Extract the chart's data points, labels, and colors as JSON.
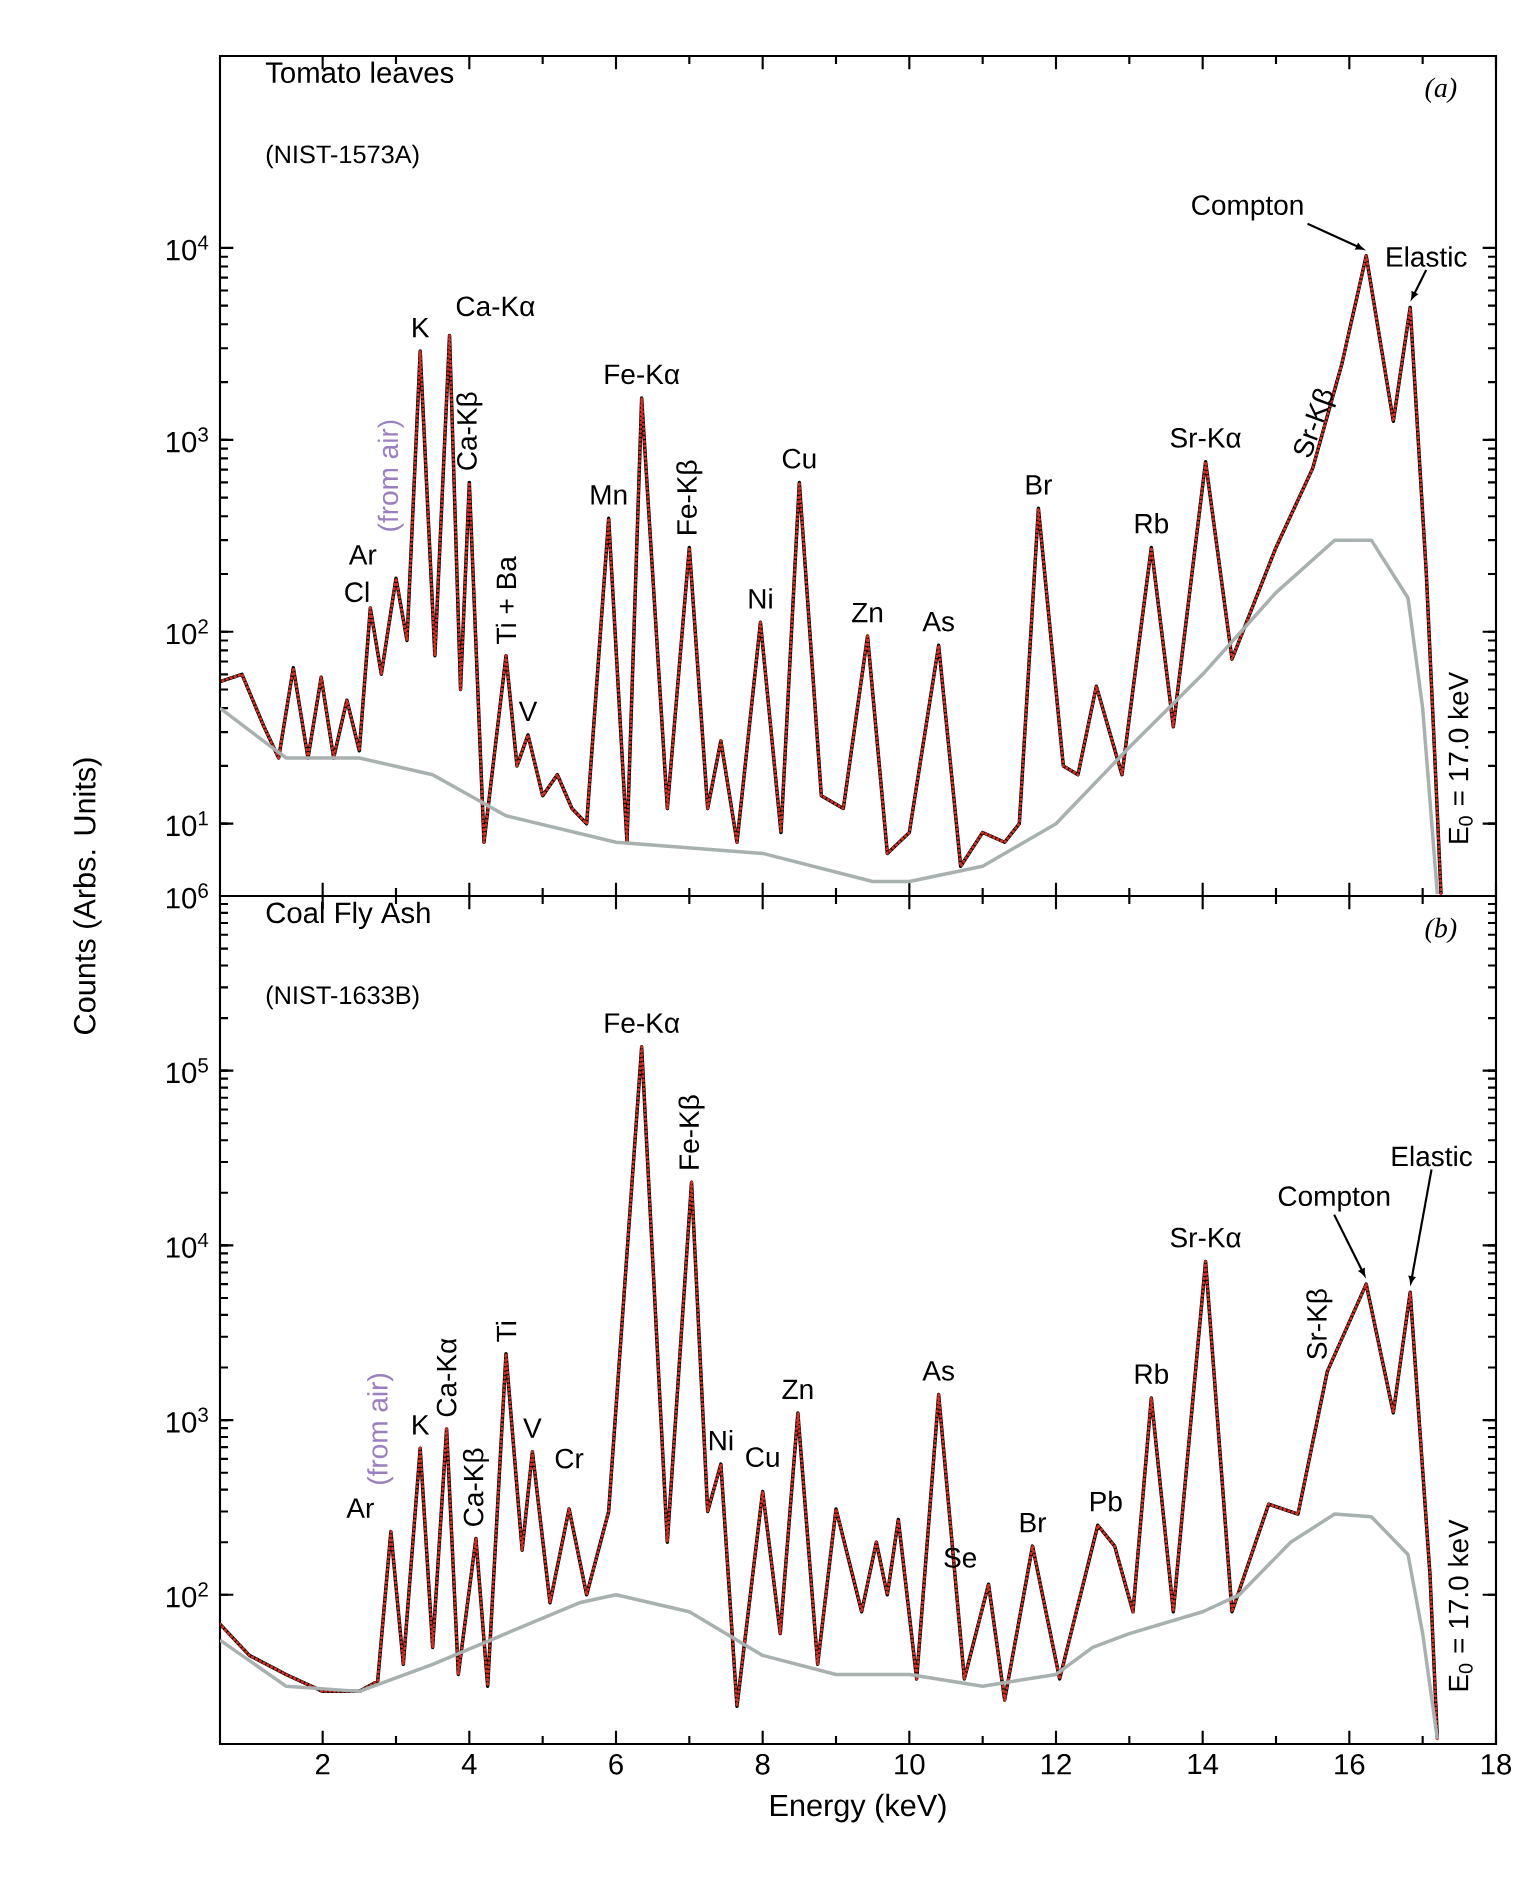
{
  "chart_data": [
    {
      "type": "line",
      "title": "Tomato leaves",
      "subtitle": "(NIST-1573A)",
      "ylabel": "Counts (Arbs. Units)",
      "log": "y",
      "tick_labels": "y",
      "xlim": [
        0.6,
        18
      ],
      "xticks": [
        2,
        4,
        6,
        8,
        10,
        12,
        14,
        16,
        18
      ],
      "ylim": [
        4.2,
        100000
      ],
      "yticks": [
        {
          "value": 10,
          "label": "10$^{1}$"
        },
        {
          "value": 100,
          "label": "10$^{2}$"
        },
        {
          "value": 1000,
          "label": "10$^{3}$"
        },
        {
          "value": 10000,
          "label": "10$^{4}$"
        }
      ],
      "series": [
        {
          "color": "#000000",
          "line_style": "solid",
          "x": [
            0.6,
            0.9,
            1.2,
            1.4,
            1.6,
            1.8,
            1.98,
            2.15,
            2.33,
            2.5,
            2.65,
            2.8,
            3.0,
            3.15,
            3.33,
            3.53,
            3.73,
            3.88,
            4.0,
            4.2,
            4.5,
            4.65,
            4.8,
            5.0,
            5.2,
            5.4,
            5.6,
            5.9,
            6.15,
            6.35,
            6.7,
            7.0,
            7.25,
            7.43,
            7.65,
            7.97,
            8.25,
            8.5,
            8.8,
            9.1,
            9.43,
            9.7,
            10.0,
            10.4,
            10.7,
            11.0,
            11.3,
            11.5,
            11.76,
            12.1,
            12.3,
            12.55,
            12.9,
            13.3,
            13.6,
            14.04,
            14.4,
            15.0,
            15.5,
            15.9,
            16.23,
            16.6,
            16.83,
            17.05,
            17.15,
            17.25
          ],
          "values": [
            55,
            60,
            32,
            22,
            65,
            22,
            58,
            22,
            44,
            24,
            133,
            60,
            190,
            90,
            2900,
            75,
            3500,
            50,
            600,
            8,
            75,
            20,
            29,
            14,
            18,
            12,
            10,
            390,
            8,
            1650,
            12,
            275,
            12,
            27,
            8,
            112,
            9,
            600,
            14,
            12,
            95,
            7,
            9,
            85,
            6,
            9,
            8,
            10,
            440,
            20,
            18,
            52,
            18,
            275,
            32,
            770,
            72,
            275,
            710,
            2500,
            9100,
            1250,
            4900,
            200,
            30,
            4.3
          ]
        },
        {
          "color": "#d03020",
          "line_style": "dotted",
          "x": [
            0.6,
            0.9,
            1.2,
            1.4,
            1.6,
            1.8,
            1.98,
            2.15,
            2.33,
            2.5,
            2.65,
            2.8,
            3.0,
            3.15,
            3.33,
            3.53,
            3.73,
            3.88,
            4.0,
            4.2,
            4.5,
            4.65,
            4.8,
            5.0,
            5.2,
            5.4,
            5.6,
            5.9,
            6.15,
            6.35,
            6.7,
            7.0,
            7.25,
            7.43,
            7.65,
            7.97,
            8.25,
            8.5,
            8.8,
            9.1,
            9.43,
            9.7,
            10.0,
            10.4,
            10.7,
            11.0,
            11.3,
            11.5,
            11.76,
            12.1,
            12.3,
            12.55,
            12.9,
            13.3,
            13.6,
            14.04,
            14.4,
            15.0,
            15.5,
            15.9,
            16.23,
            16.6,
            16.83,
            17.05,
            17.15,
            17.25
          ],
          "values": [
            55,
            60,
            32,
            22,
            65,
            22,
            58,
            22,
            44,
            24,
            133,
            60,
            190,
            90,
            2900,
            75,
            3500,
            50,
            600,
            8,
            75,
            20,
            29,
            14,
            18,
            12,
            10,
            390,
            8,
            1650,
            12,
            275,
            12,
            27,
            8,
            112,
            9,
            600,
            14,
            12,
            95,
            7,
            9,
            85,
            6,
            9,
            8,
            10,
            440,
            20,
            18,
            52,
            18,
            275,
            32,
            770,
            72,
            275,
            710,
            2500,
            9100,
            1250,
            4900,
            200,
            30,
            4.3
          ]
        },
        {
          "color": "#a8b0b0",
          "line_style": "solid",
          "x": [
            0.6,
            1.5,
            2.5,
            3.5,
            4.5,
            6.0,
            8.0,
            9.5,
            10.0,
            11.0,
            12.0,
            13.0,
            14.0,
            15.0,
            15.8,
            16.3,
            16.8,
            17.0,
            17.2
          ],
          "values": [
            40,
            22,
            22,
            18,
            11,
            8,
            7,
            5,
            5,
            6,
            10,
            25,
            60,
            160,
            300,
            300,
            150,
            40,
            4.3
          ]
        }
      ],
      "annotations": [
        "(a)",
        {
          "text": "Cl",
          "x": 2.65,
          "y": 133
        },
        {
          "text": "Ar",
          "x": 3.0,
          "y": 190
        },
        {
          "text": "K",
          "x": 3.33,
          "y": 2900
        },
        {
          "text": "Ca-Kα",
          "x": 3.73,
          "y": 3500
        },
        {
          "text": "(from air)",
          "x": 3.0,
          "y": 190
        },
        {
          "text": "Ca-Kβ",
          "x": 4.0,
          "y": 600
        },
        {
          "text": "Ti + Ba",
          "x": 4.5,
          "y": 75
        },
        {
          "text": "V",
          "x": 4.8,
          "y": 29
        },
        {
          "text": "Mn",
          "x": 5.9,
          "y": 390
        },
        {
          "text": "Fe-Kα",
          "x": 6.35,
          "y": 1650
        },
        {
          "text": "Fe-Kβ",
          "x": 7.0,
          "y": 275
        },
        {
          "text": "Ni",
          "x": 7.97,
          "y": 112
        },
        {
          "text": "Cu",
          "x": 8.5,
          "y": 600
        },
        {
          "text": "Zn",
          "x": 9.43,
          "y": 95
        },
        {
          "text": "As",
          "x": 10.4,
          "y": 85
        },
        {
          "text": "Br",
          "x": 11.76,
          "y": 440
        },
        {
          "text": "Rb",
          "x": 13.3,
          "y": 275
        },
        {
          "text": "Sr-Kα",
          "x": 14.04,
          "y": 770
        },
        {
          "text": "Sr-Kβ",
          "x": 15.5,
          "y": 710
        },
        {
          "text": "Compton",
          "x": 16.23,
          "y": 9100
        },
        {
          "text": "Elastic",
          "x": 16.83,
          "y": 4900
        },
        "E$_{0}$ = 17.0 keV"
      ]
    },
    {
      "type": "line",
      "title": "Coal Fly Ash",
      "subtitle": "(NIST-1633B)",
      "xlabel": "Energy (keV)",
      "log": "y",
      "xlim": [
        0.6,
        18
      ],
      "xticks": [
        2,
        4,
        6,
        8,
        10,
        12,
        14,
        16,
        18
      ],
      "ylim": [
        14,
        1000000
      ],
      "yticks": [
        {
          "value": 100,
          "label": "10$^{2}$"
        },
        {
          "value": 1000,
          "label": "10$^{3}$"
        },
        {
          "value": 10000,
          "label": "10$^{4}$"
        },
        {
          "value": 100000,
          "label": "10$^{5}$"
        },
        {
          "value": 1000000,
          "label": "10$^{6}$"
        }
      ],
      "series": [
        {
          "color": "#000000",
          "line_style": "solid",
          "x": [
            0.6,
            1.0,
            1.5,
            2.0,
            2.5,
            2.75,
            2.93,
            3.1,
            3.33,
            3.5,
            3.69,
            3.85,
            4.09,
            4.25,
            4.5,
            4.72,
            4.86,
            5.1,
            5.36,
            5.6,
            5.9,
            6.35,
            6.7,
            7.03,
            7.25,
            7.43,
            7.65,
            8.0,
            8.24,
            8.48,
            8.75,
            9.0,
            9.35,
            9.55,
            9.7,
            9.85,
            10.1,
            10.4,
            10.75,
            11.08,
            11.3,
            11.68,
            12.05,
            12.57,
            12.8,
            13.05,
            13.3,
            13.6,
            14.04,
            14.4,
            14.9,
            15.3,
            15.7,
            16.23,
            16.6,
            16.83,
            17.1,
            17.2
          ],
          "values": [
            68,
            45,
            35,
            28,
            28,
            32,
            230,
            40,
            690,
            50,
            890,
            35,
            210,
            30,
            2400,
            180,
            660,
            90,
            310,
            100,
            300,
            137000,
            200,
            23000,
            300,
            560,
            23,
            390,
            60,
            1100,
            40,
            310,
            80,
            200,
            100,
            270,
            33,
            1400,
            33,
            115,
            25,
            190,
            33,
            250,
            190,
            80,
            1340,
            80,
            8100,
            80,
            330,
            290,
            1900,
            6000,
            1100,
            5400,
            130,
            15
          ]
        },
        {
          "color": "#d03020",
          "line_style": "dotted",
          "x": [
            0.6,
            1.0,
            1.5,
            2.0,
            2.5,
            2.75,
            2.93,
            3.1,
            3.33,
            3.5,
            3.69,
            3.85,
            4.09,
            4.25,
            4.5,
            4.72,
            4.86,
            5.1,
            5.36,
            5.6,
            5.9,
            6.35,
            6.7,
            7.03,
            7.25,
            7.43,
            7.65,
            8.0,
            8.24,
            8.48,
            8.75,
            9.0,
            9.35,
            9.55,
            9.7,
            9.85,
            10.1,
            10.4,
            10.75,
            11.08,
            11.3,
            11.68,
            12.05,
            12.57,
            12.8,
            13.05,
            13.3,
            13.6,
            14.04,
            14.4,
            14.9,
            15.3,
            15.7,
            16.23,
            16.6,
            16.83,
            17.1,
            17.2
          ],
          "values": [
            68,
            45,
            35,
            28,
            28,
            32,
            230,
            40,
            690,
            50,
            890,
            35,
            210,
            30,
            2400,
            180,
            660,
            90,
            310,
            100,
            300,
            137000,
            200,
            23000,
            300,
            560,
            23,
            390,
            60,
            1100,
            40,
            310,
            80,
            200,
            100,
            270,
            33,
            1400,
            33,
            115,
            25,
            190,
            33,
            250,
            190,
            80,
            1340,
            80,
            8100,
            80,
            330,
            290,
            1900,
            6000,
            1100,
            5400,
            130,
            15
          ]
        },
        {
          "color": "#a8b0b0",
          "line_style": "solid",
          "x": [
            0.6,
            1.5,
            2.5,
            3.5,
            4.5,
            5.5,
            6.0,
            7.0,
            8.0,
            9.0,
            10.0,
            11.0,
            12.0,
            12.5,
            13.0,
            14.0,
            14.5,
            15.2,
            15.8,
            16.3,
            16.8,
            17.0,
            17.2
          ],
          "values": [
            55,
            30,
            28,
            40,
            60,
            90,
            100,
            80,
            45,
            35,
            35,
            30,
            35,
            50,
            60,
            80,
            100,
            200,
            290,
            280,
            170,
            60,
            15
          ]
        }
      ],
      "annotations": [
        "(b)",
        {
          "text": "Ar",
          "x": 2.93,
          "y": 230
        },
        {
          "text": "(from air)",
          "x": 2.93,
          "y": 230
        },
        {
          "text": "K",
          "x": 3.33,
          "y": 690
        },
        {
          "text": "Ca-Kα",
          "x": 3.69,
          "y": 890
        },
        {
          "text": "Ca-Kβ",
          "x": 4.09,
          "y": 210
        },
        {
          "text": "Ti",
          "x": 4.5,
          "y": 2400
        },
        {
          "text": "V",
          "x": 4.86,
          "y": 660
        },
        {
          "text": "Cr",
          "x": 5.36,
          "y": 310
        },
        {
          "text": "Fe-Kα",
          "x": 6.35,
          "y": 137000
        },
        {
          "text": "Fe-Kβ",
          "x": 7.03,
          "y": 23000
        },
        {
          "text": "Ni",
          "x": 7.43,
          "y": 560
        },
        {
          "text": "Cu",
          "x": 8.0,
          "y": 390
        },
        {
          "text": "Zn",
          "x": 8.48,
          "y": 1100
        },
        {
          "text": "As",
          "x": 10.4,
          "y": 1400
        },
        {
          "text": "Se",
          "x": 11.08,
          "y": 115
        },
        {
          "text": "Br",
          "x": 11.68,
          "y": 190
        },
        {
          "text": "Pb",
          "x": 12.57,
          "y": 250
        },
        {
          "text": "Rb",
          "x": 13.3,
          "y": 1340
        },
        {
          "text": "Sr-Kα",
          "x": 14.04,
          "y": 8100
        },
        {
          "text": "Sr-Kβ",
          "x": 15.7,
          "y": 1900
        },
        {
          "text": "Compton",
          "x": 16.23,
          "y": 6000
        },
        {
          "text": "Elastic",
          "x": 16.83,
          "y": 5400
        },
        "E$_{0}$ = 17.0 keV"
      ]
    }
  ]
}
